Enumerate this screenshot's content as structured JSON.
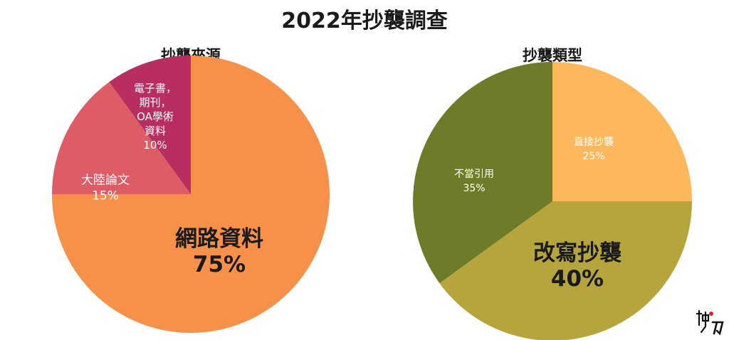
{
  "title": "2022年抄襲調查",
  "chart_data": [
    {
      "type": "pie",
      "title": "抄襲來源",
      "slices": [
        {
          "label": "網路資料",
          "value": 75,
          "value_label": "75%",
          "color": "#F7914A"
        },
        {
          "label": "大陸論文",
          "value": 15,
          "value_label": "15%",
          "color": "#DD5C65"
        },
        {
          "label": "電子書，期刊，OA學術資料",
          "label_lines": [
            "電子書，",
            "期刊，",
            "OA學術",
            "資料"
          ],
          "value": 10,
          "value_label": "10%",
          "color": "#B82E61"
        }
      ]
    },
    {
      "type": "pie",
      "title": "抄襲類型",
      "slices": [
        {
          "label": "直接抄襲",
          "value": 25,
          "value_label": "25%",
          "color": "#FDB85C"
        },
        {
          "label": "改寫抄襲",
          "value": 40,
          "value_label": "40%",
          "color": "#B5A53C"
        },
        {
          "label": "不當引用",
          "value": 35,
          "value_label": "35%",
          "color": "#6E7C2A"
        }
      ]
    }
  ],
  "logo": {
    "icon": "brand-logo-icon"
  }
}
